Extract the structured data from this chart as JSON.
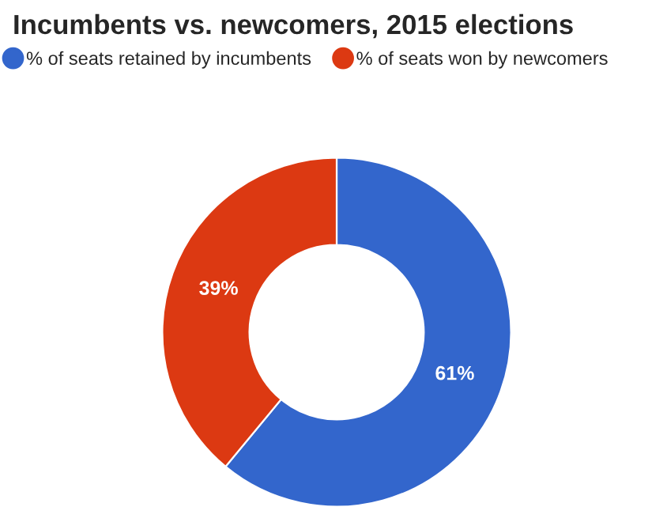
{
  "chart_data": {
    "type": "donut",
    "title": "Incumbents vs. newcomers, 2015 elections",
    "categories": [
      "% of seats retained by incumbents",
      "% of seats won by newcomers"
    ],
    "values": [
      61,
      39
    ],
    "colors": [
      "#3366cc",
      "#dc3912"
    ],
    "value_labels": [
      "61%",
      "39%"
    ],
    "legend": "top left"
  }
}
